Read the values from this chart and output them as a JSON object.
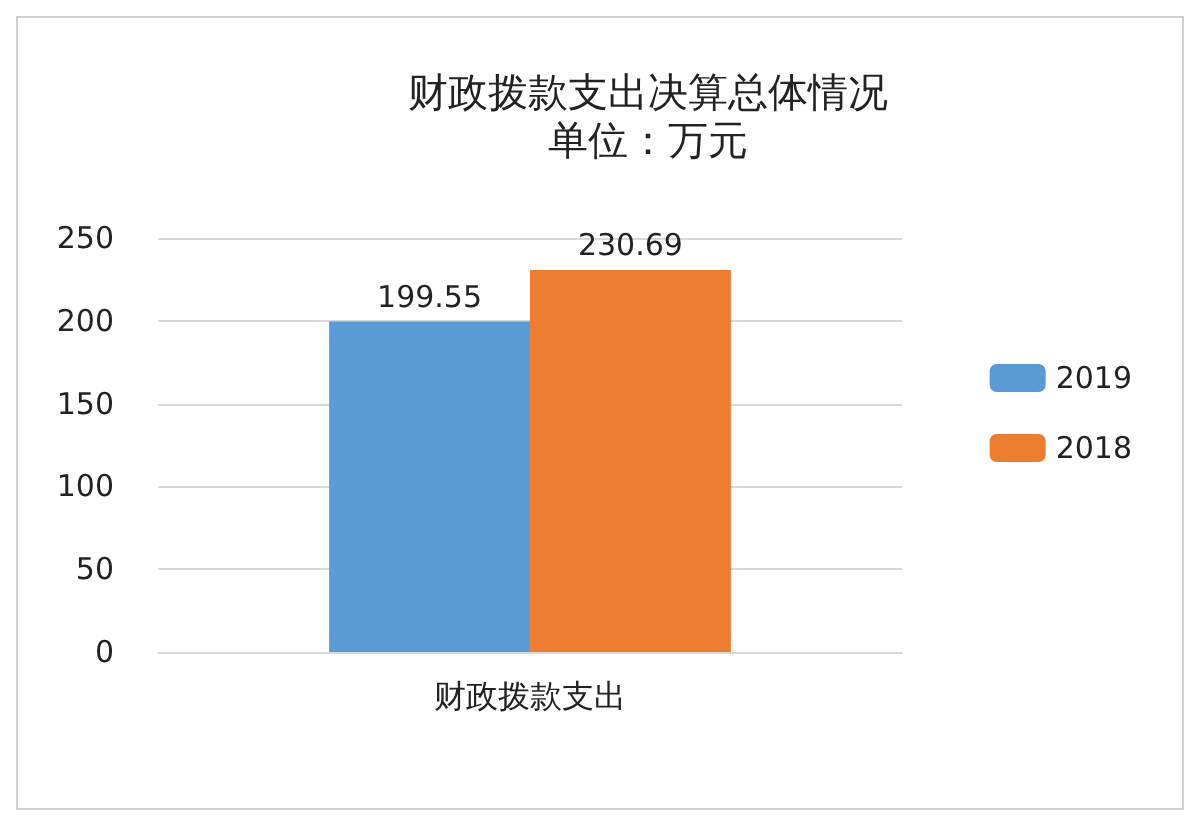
{
  "chart_data": {
    "type": "bar",
    "title": "财政拨款支出决算总体情况",
    "subtitle": "单位：万元",
    "categories": [
      "财政拨款支出"
    ],
    "series": [
      {
        "name": "2019",
        "color": "#5b9bd5",
        "values": [
          199.55
        ]
      },
      {
        "name": "2018",
        "color": "#ed7d31",
        "values": [
          230.69
        ]
      }
    ],
    "ylim": [
      0,
      250
    ],
    "yticks": [
      0,
      50,
      100,
      150,
      200,
      250
    ],
    "grid": "y",
    "legend": "right",
    "data_labels": true
  }
}
